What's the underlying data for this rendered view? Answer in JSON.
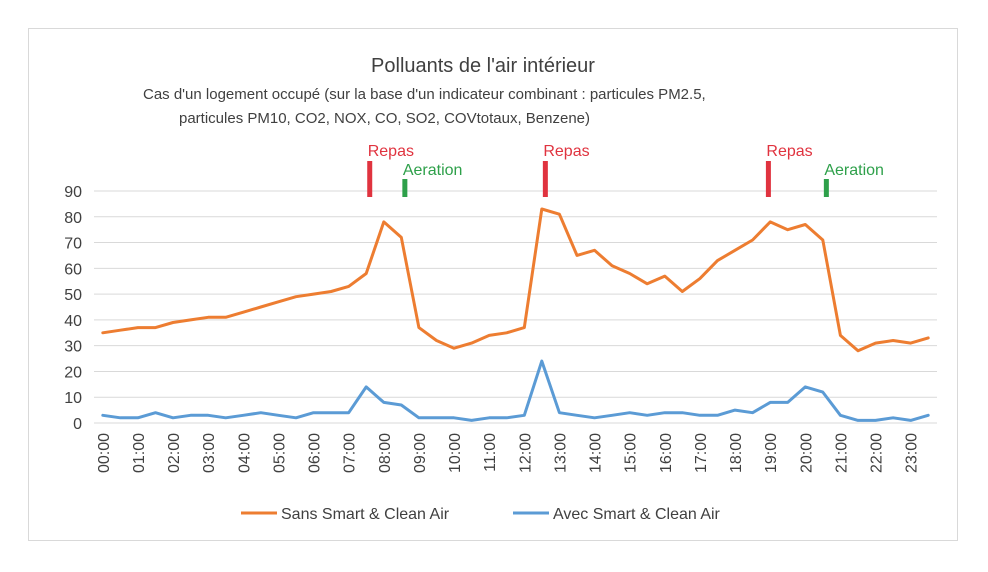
{
  "chart_data": {
    "type": "line",
    "title": "Polluants de l'air intérieur",
    "subtitle_lines": [
      "Cas d'un logement occupé (sur la base d'un indicateur combinant : particules PM2.5,",
      "particules PM10, CO2, NOX, CO, SO2, COVtotaux, Benzene)"
    ],
    "ylim": [
      0,
      90
    ],
    "yticks": [
      0,
      10,
      20,
      30,
      40,
      50,
      60,
      70,
      80,
      90
    ],
    "x_tick_labels": [
      "00:00",
      "01:00",
      "02:00",
      "03:00",
      "04:00",
      "05:00",
      "06:00",
      "07:00",
      "08:00",
      "09:00",
      "10:00",
      "11:00",
      "12:00",
      "13:00",
      "14:00",
      "15:00",
      "16:00",
      "17:00",
      "18:00",
      "19:00",
      "20:00",
      "21:00",
      "22:00",
      "23:00"
    ],
    "x_step_hours": 0.5,
    "grid": true,
    "legend_position": "bottom",
    "series": [
      {
        "name": "Sans Smart & Clean Air",
        "color": "#ED7D31",
        "values": [
          35,
          36,
          37,
          37,
          39,
          40,
          41,
          41,
          43,
          45,
          47,
          49,
          50,
          51,
          53,
          58,
          78,
          72,
          37,
          32,
          29,
          31,
          34,
          35,
          37,
          83,
          81,
          65,
          67,
          61,
          58,
          54,
          57,
          51,
          56,
          63,
          67,
          71,
          78,
          75,
          77,
          71,
          34,
          28,
          31,
          32,
          31,
          33
        ]
      },
      {
        "name": "Avec Smart & Clean Air",
        "color": "#5B9BD5",
        "values": [
          3,
          2,
          2,
          4,
          2,
          3,
          3,
          2,
          3,
          4,
          3,
          2,
          4,
          4,
          4,
          14,
          8,
          7,
          2,
          2,
          2,
          1,
          2,
          2,
          3,
          24,
          4,
          3,
          2,
          3,
          4,
          3,
          4,
          4,
          3,
          3,
          5,
          4,
          8,
          8,
          14,
          12,
          3,
          1,
          1,
          2,
          1,
          3
        ]
      }
    ],
    "annotations": [
      {
        "label": "Repas",
        "hour": 7.6,
        "color": "#E0333F"
      },
      {
        "label": "Aeration",
        "hour": 8.6,
        "color": "#2EA04A"
      },
      {
        "label": "Repas",
        "hour": 12.6,
        "color": "#E0333F"
      },
      {
        "label": "Repas",
        "hour": 18.95,
        "color": "#E0333F"
      },
      {
        "label": "Aeration",
        "hour": 20.6,
        "color": "#2EA04A"
      }
    ]
  }
}
